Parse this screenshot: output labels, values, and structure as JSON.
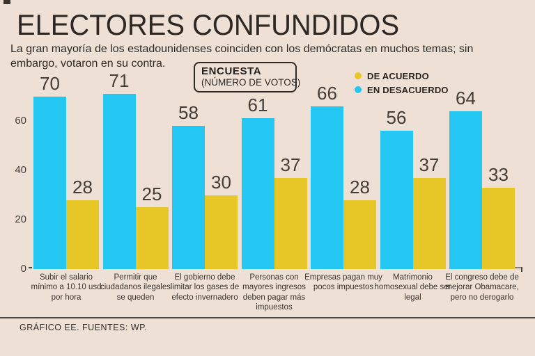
{
  "page": {
    "title": "ELECTORES CONFUNDIDOS",
    "subtitle": "La gran mayoría de los estadounidenses coinciden con los demócratas en muchos temas; sin embargo, votaron en su contra.",
    "footer": "GRÁFICO EE. FUENTES: WP.",
    "background_color": "#EEE0D4",
    "text_color": "#332D2A"
  },
  "annotation_box": {
    "title": "ENCUESTA",
    "subtitle": "(NÚMERO DE VOTOS)"
  },
  "legend": [
    {
      "label": "DE ACUERDO",
      "color": "#E7C728"
    },
    {
      "label": "EN DESACUERDO",
      "color": "#24C7F2"
    }
  ],
  "chart_data": {
    "type": "bar",
    "title": "ELECTORES CONFUNDIDOS",
    "subtitle_note": "ENCUESTA (NÚMERO DE VOTOS)",
    "categories": [
      "Subir el salario mínimo a 10.10 usd por hora",
      "Permitir que ciudadanos ilegales se queden",
      "El gobierno debe limitar los gases de efecto invernadero",
      "Personas con mayores ingresos deben pagar más impuestos",
      "Empresas pagan muy pocos impuestos",
      "Matrimonio homosexual debe ser legal",
      "El congreso debe de mejorar Obamacare, pero no derogarlo"
    ],
    "series": [
      {
        "name": "EN DESACUERDO",
        "color": "#24C7F2",
        "values": [
          70,
          71,
          58,
          61,
          66,
          56,
          64
        ]
      },
      {
        "name": "DE ACUERDO",
        "color": "#E7C728",
        "values": [
          28,
          25,
          30,
          37,
          28,
          37,
          33
        ]
      }
    ],
    "value_labels": true,
    "yticks": [
      0,
      20,
      40,
      60
    ],
    "ylim": [
      0,
      72
    ],
    "grid": false,
    "legend_position": "top-right",
    "bar_order_note": "EN DESACUERDO (blue) drawn left of DE ACUERDO (yellow) in each pair"
  }
}
